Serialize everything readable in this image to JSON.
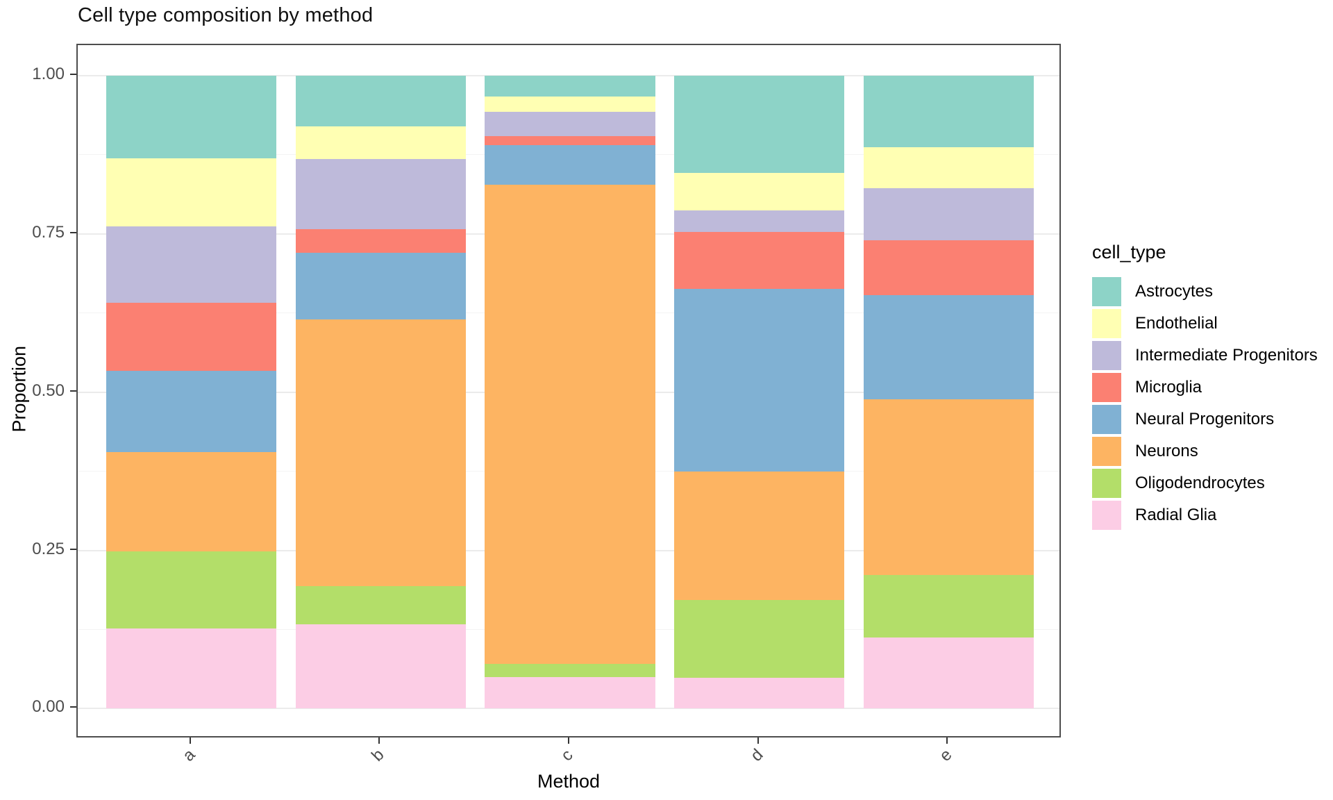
{
  "title": "Cell type composition by method",
  "chart_data": {
    "type": "bar",
    "stacked": true,
    "normalized": true,
    "title": "Cell type composition by method",
    "xlabel": "Method",
    "ylabel": "Proportion",
    "categories": [
      "a",
      "b",
      "c",
      "d",
      "e"
    ],
    "y_ticks": [
      "0.00",
      "0.25",
      "0.50",
      "0.75",
      "1.00"
    ],
    "y_tick_values": [
      0,
      0.25,
      0.5,
      0.75,
      1.0
    ],
    "minor_grid_values": [
      0.125,
      0.375,
      0.625,
      0.875
    ],
    "ylim": [
      0,
      1
    ],
    "grid": true,
    "legend_title": "cell_type",
    "legend_position": "right",
    "stack_order_note": "first series drawn at top of stack, last at bottom",
    "series": [
      {
        "name": "Astrocytes",
        "color": "#8DD3C7",
        "values": [
          0.13,
          0.08,
          0.033,
          0.153,
          0.113
        ]
      },
      {
        "name": "Endothelial",
        "color": "#FFFFB3",
        "values": [
          0.108,
          0.051,
          0.024,
          0.06,
          0.064
        ]
      },
      {
        "name": "Intermediate Progenitors",
        "color": "#BEBADA",
        "values": [
          0.12,
          0.111,
          0.038,
          0.034,
          0.083
        ]
      },
      {
        "name": "Microglia",
        "color": "#FB8072",
        "values": [
          0.108,
          0.037,
          0.014,
          0.09,
          0.086
        ]
      },
      {
        "name": "Neural Progenitors",
        "color": "#80B1D3",
        "values": [
          0.129,
          0.106,
          0.063,
          0.288,
          0.165
        ]
      },
      {
        "name": "Neurons",
        "color": "#FDB462",
        "values": [
          0.157,
          0.421,
          0.757,
          0.203,
          0.278
        ]
      },
      {
        "name": "Oligodendrocytes",
        "color": "#B3DE69",
        "values": [
          0.121,
          0.061,
          0.021,
          0.123,
          0.099
        ]
      },
      {
        "name": "Radial Glia",
        "color": "#FCCDE5",
        "values": [
          0.127,
          0.133,
          0.05,
          0.049,
          0.112
        ]
      }
    ]
  }
}
